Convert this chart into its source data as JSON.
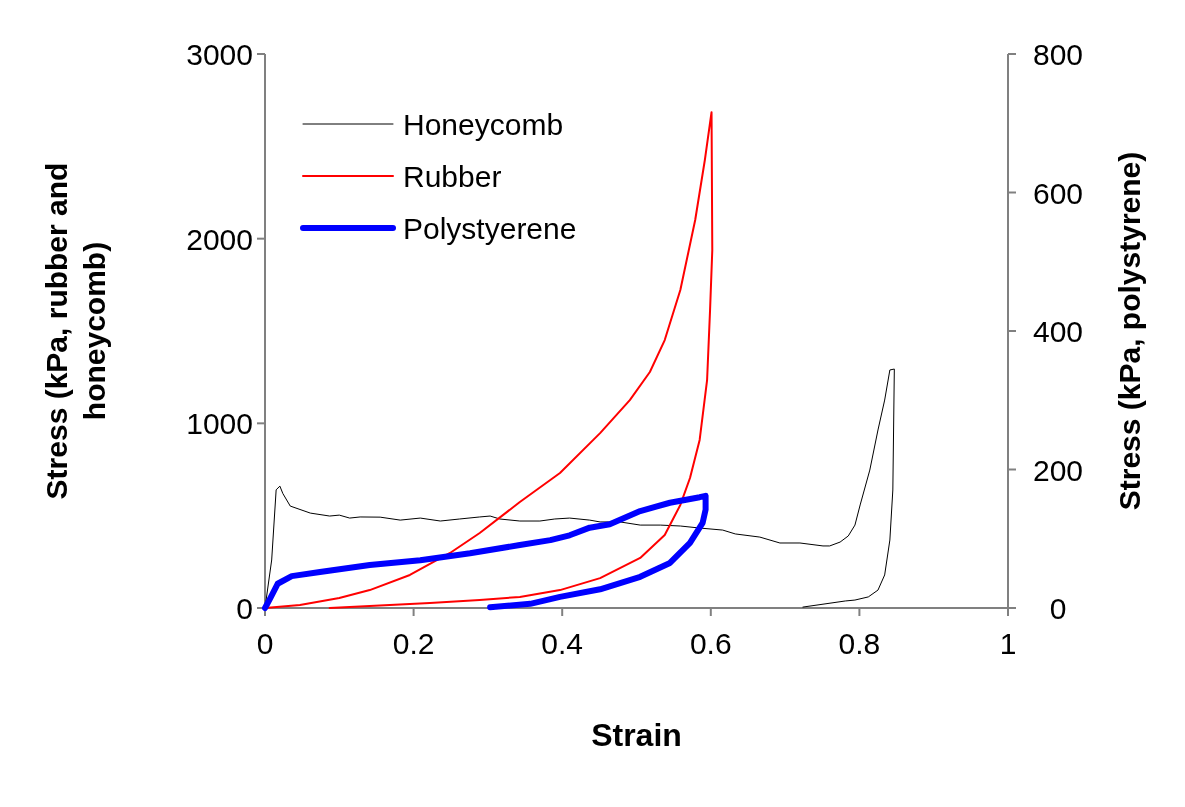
{
  "chart_data": {
    "type": "line",
    "xlabel": "Strain",
    "ylabel": "Stress (kPa, rubber and honeycomb)",
    "y2label": "Stress (kPa, polystyrene)",
    "xlim": [
      0,
      1
    ],
    "xticks": [
      0,
      0.2,
      0.4,
      0.6,
      0.8,
      1
    ],
    "ylim": [
      0,
      3000
    ],
    "yticks": [
      0,
      1000,
      2000,
      3000
    ],
    "y2lim": [
      0,
      800
    ],
    "y2ticks": [
      0,
      200,
      400,
      600,
      800
    ],
    "grid": false,
    "legend": "top left",
    "marker": "none",
    "line_style": "solid",
    "series": [
      {
        "name": "Honeycomb",
        "color": "#000000",
        "x": [
          0,
          0.009,
          0.015,
          0.02,
          0.024,
          0.034,
          0.061,
          0.087,
          0.1,
          0.114,
          0.128,
          0.155,
          0.182,
          0.209,
          0.236,
          0.262,
          0.289,
          0.303,
          0.316,
          0.343,
          0.37,
          0.39,
          0.41,
          0.437,
          0.451,
          0.478,
          0.505,
          0.532,
          0.559,
          0.585,
          0.616,
          0.633,
          0.666,
          0.693,
          0.72,
          0.751,
          0.76,
          0.774,
          0.785,
          0.794,
          0.801,
          0.814,
          0.825,
          0.834,
          0.841,
          0.847,
          0.847,
          0.845,
          0.841,
          0.834,
          0.825,
          0.812,
          0.794,
          0.781,
          0.724
        ],
        "values": [
          0,
          260,
          640,
          660,
          620,
          552,
          514,
          498,
          503,
          487,
          493,
          492,
          476,
          487,
          471,
          482,
          493,
          498,
          482,
          471,
          471,
          482,
          487,
          476,
          466,
          466,
          449,
          449,
          444,
          433,
          422,
          401,
          384,
          352,
          352,
          336,
          336,
          357,
          390,
          449,
          558,
          747,
          964,
          1126,
          1289,
          1294,
          1289,
          639,
          368,
          179,
          97,
          60,
          43,
          38,
          5
        ]
      },
      {
        "name": "Rubber",
        "color": "#ff0000",
        "x": [
          0,
          0.047,
          0.1,
          0.141,
          0.195,
          0.249,
          0.289,
          0.343,
          0.397,
          0.451,
          0.491,
          0.518,
          0.538,
          0.559,
          0.579,
          0.592,
          0.601,
          0.602,
          0.599,
          0.595,
          0.585,
          0.572,
          0.559,
          0.538,
          0.505,
          0.451,
          0.397,
          0.343,
          0.289,
          0.222,
          0.141,
          0.087
        ],
        "values": [
          0,
          16,
          54,
          97,
          179,
          298,
          406,
          574,
          731,
          947,
          1126,
          1278,
          1451,
          1722,
          2101,
          2426,
          2685,
          1938,
          1613,
          1234,
          910,
          704,
          558,
          395,
          271,
          162,
          97,
          60,
          43,
          27,
          11,
          0
        ]
      },
      {
        "name": "Polystyerene",
        "color": "#0000ff",
        "axis": "y2",
        "x": [
          0,
          0.007,
          0.017,
          0.036,
          0.074,
          0.141,
          0.209,
          0.276,
          0.343,
          0.384,
          0.41,
          0.437,
          0.464,
          0.505,
          0.545,
          0.585,
          0.593,
          0.593,
          0.589,
          0.572,
          0.545,
          0.505,
          0.451,
          0.397,
          0.357,
          0.303
        ],
        "values": [
          0,
          14,
          35,
          46,
          52,
          62,
          69,
          79,
          91,
          98,
          105,
          116,
          121,
          140,
          152,
          160,
          162,
          142,
          123,
          94,
          65,
          45,
          27,
          16,
          6,
          1
        ]
      }
    ]
  }
}
